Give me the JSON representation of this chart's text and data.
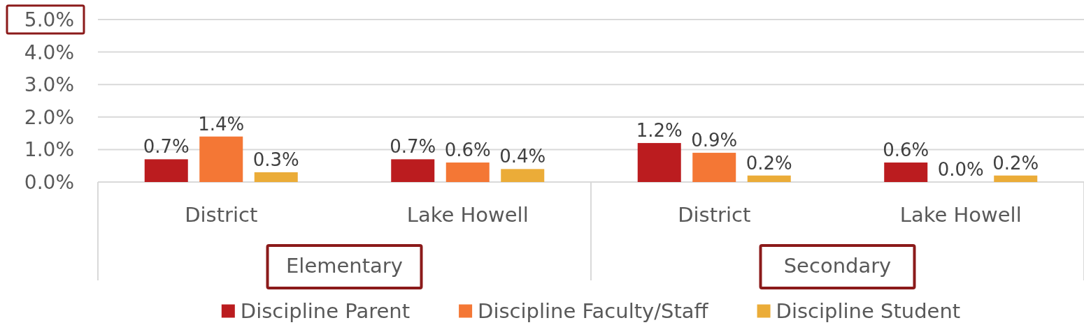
{
  "chart_data": {
    "type": "bar",
    "categories": [
      "District",
      "Lake Howell",
      "District",
      "Lake Howell"
    ],
    "series": [
      {
        "name": "Discipline Parent",
        "color": "#bb1c1f",
        "values": [
          0.7,
          0.7,
          1.2,
          0.6
        ],
        "value_labels": [
          "0.7%",
          "0.7%",
          "1.2%",
          "0.6%"
        ]
      },
      {
        "name": "Discipline Faculty/Staff",
        "color": "#f47735",
        "values": [
          1.4,
          0.6,
          0.9,
          0.0
        ],
        "value_labels": [
          "1.4%",
          "0.6%",
          "0.9%",
          "0.0%"
        ]
      },
      {
        "name": "Discipline Student",
        "color": "#ebac38",
        "values": [
          0.3,
          0.4,
          0.2,
          0.2
        ],
        "value_labels": [
          "0.3%",
          "0.4%",
          "0.2%",
          "0.2%"
        ]
      }
    ],
    "ylim": [
      0,
      5
    ],
    "yticks": [
      {
        "value": 0,
        "label": "0.0%"
      },
      {
        "value": 1,
        "label": "1.0%"
      },
      {
        "value": 2,
        "label": "2.0%"
      },
      {
        "value": 3,
        "label": "3.0%"
      },
      {
        "value": 4,
        "label": "4.0%"
      },
      {
        "value": 5,
        "label": "5.0%"
      }
    ],
    "grid": "y",
    "legend": "bottom",
    "annotations": [
      "Elementary",
      "Secondary"
    ]
  }
}
